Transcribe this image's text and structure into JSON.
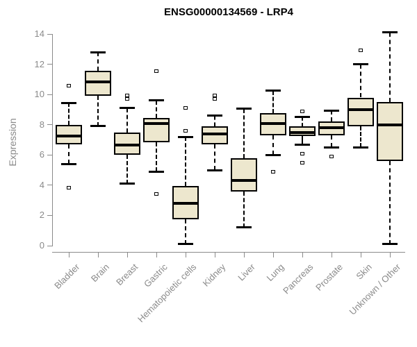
{
  "chart_data": {
    "type": "boxplot",
    "title": "ENSG00000134569 - LRP4",
    "ylabel": "Expression",
    "xlabel": "",
    "ylim": [
      0,
      14
    ],
    "yticks": [
      0,
      2,
      4,
      6,
      8,
      10,
      12,
      14
    ],
    "grid": false,
    "legend": null,
    "categories": [
      "Bladder",
      "Brain",
      "Breast",
      "Gastric",
      "Hematopoietic cells",
      "Kidney",
      "Liver",
      "Lung",
      "Pancreas",
      "Prostate",
      "Skin",
      "Unknown / Other"
    ],
    "series": [
      {
        "name": "Bladder",
        "whisker_low": 5.4,
        "q1": 6.7,
        "median": 7.25,
        "q3": 8.0,
        "whisker_high": 9.45,
        "outliers": [
          10.6,
          3.85
        ]
      },
      {
        "name": "Brain",
        "whisker_low": 7.9,
        "q1": 9.9,
        "median": 10.85,
        "q3": 11.55,
        "whisker_high": 12.8,
        "outliers": []
      },
      {
        "name": "Breast",
        "whisker_low": 4.1,
        "q1": 6.0,
        "median": 6.65,
        "q3": 7.5,
        "whisker_high": 9.1,
        "outliers": [
          9.95,
          9.7
        ]
      },
      {
        "name": "Gastric",
        "whisker_low": 4.9,
        "q1": 6.85,
        "median": 8.1,
        "q3": 8.45,
        "whisker_high": 9.6,
        "outliers": [
          11.55,
          3.4
        ]
      },
      {
        "name": "Hematopoietic cells",
        "whisker_low": 0.1,
        "q1": 1.75,
        "median": 2.8,
        "q3": 3.95,
        "whisker_high": 7.2,
        "outliers": [
          9.1,
          7.6
        ]
      },
      {
        "name": "Kidney",
        "whisker_low": 5.0,
        "q1": 6.7,
        "median": 7.4,
        "q3": 7.9,
        "whisker_high": 8.6,
        "outliers": [
          9.95,
          9.7
        ]
      },
      {
        "name": "Liver",
        "whisker_low": 1.2,
        "q1": 3.6,
        "median": 4.3,
        "q3": 5.8,
        "whisker_high": 9.05,
        "outliers": []
      },
      {
        "name": "Lung",
        "whisker_low": 6.0,
        "q1": 7.3,
        "median": 8.1,
        "q3": 8.75,
        "whisker_high": 10.25,
        "outliers": [
          4.9
        ]
      },
      {
        "name": "Pancreas",
        "whisker_low": 6.7,
        "q1": 7.25,
        "median": 7.5,
        "q3": 7.9,
        "whisker_high": 8.5,
        "outliers": [
          8.9,
          6.1,
          5.5
        ]
      },
      {
        "name": "Prostate",
        "whisker_low": 6.5,
        "q1": 7.3,
        "median": 7.8,
        "q3": 8.2,
        "whisker_high": 8.95,
        "outliers": [
          5.9
        ]
      },
      {
        "name": "Skin",
        "whisker_low": 6.5,
        "q1": 7.9,
        "median": 9.0,
        "q3": 9.8,
        "whisker_high": 12.0,
        "outliers": [
          12.9
        ]
      },
      {
        "name": "Unknown / Other",
        "whisker_low": 0.1,
        "q1": 5.6,
        "median": 8.0,
        "q3": 9.5,
        "whisker_high": 14.1,
        "outliers": []
      }
    ],
    "colors": {
      "box_fill": "#ede7ce",
      "box_border": "#000000",
      "median": "#000000",
      "whisker": "#000000",
      "axis": "#8a8a8a",
      "tick_label": "#8a8a8a",
      "title": "#000000",
      "background": "#ffffff"
    }
  }
}
